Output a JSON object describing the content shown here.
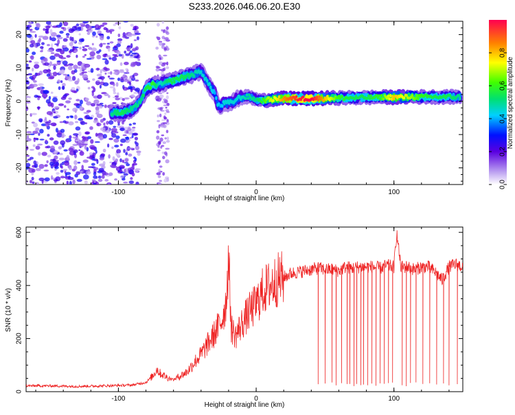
{
  "title": "S233.2026.046.06.20.E30",
  "chart_data": [
    {
      "type": "heatmap",
      "xlabel": "Height of straight line (km)",
      "ylabel": "Frequency (Hz)",
      "xlim": [
        -167,
        150
      ],
      "ylim": [
        -25,
        24
      ],
      "xticks": [
        -100,
        0,
        100
      ],
      "yticks": [
        -20,
        -10,
        0,
        10,
        20
      ],
      "colorbar": {
        "label": "Normalized spectral amplitude",
        "range": [
          0,
          1
        ],
        "ticks": [
          "0.0",
          "0.2",
          "0.4",
          "0.6",
          "0.8"
        ]
      },
      "ridge": [
        {
          "x": -105,
          "y": -3.5,
          "amp": 0.5
        },
        {
          "x": -98,
          "y": -3.5,
          "amp": 0.55
        },
        {
          "x": -90,
          "y": -2.5,
          "amp": 0.5
        },
        {
          "x": -84,
          "y": 0,
          "amp": 0.5
        },
        {
          "x": -80,
          "y": 3.5,
          "amp": 0.55
        },
        {
          "x": -75,
          "y": 5,
          "amp": 0.6
        },
        {
          "x": -70,
          "y": 5,
          "amp": 0.45
        },
        {
          "x": -62,
          "y": 6,
          "amp": 0.55
        },
        {
          "x": -55,
          "y": 7,
          "amp": 0.55
        },
        {
          "x": -46,
          "y": 8,
          "amp": 0.5
        },
        {
          "x": -40,
          "y": 9,
          "amp": 0.45
        },
        {
          "x": -33,
          "y": 4,
          "amp": 0.45
        },
        {
          "x": -30,
          "y": 2.5,
          "amp": 0.4
        },
        {
          "x": -28,
          "y": -1,
          "amp": 0.45
        },
        {
          "x": -26,
          "y": -1.5,
          "amp": 0.4
        },
        {
          "x": -23,
          "y": -0.5,
          "amp": 0.45
        },
        {
          "x": -18,
          "y": -0.5,
          "amp": 0.45
        },
        {
          "x": -12,
          "y": 1.2,
          "amp": 0.45
        },
        {
          "x": -5,
          "y": 1.3,
          "amp": 0.5
        },
        {
          "x": 0,
          "y": 0.5,
          "amp": 0.5
        },
        {
          "x": 5,
          "y": 0.2,
          "amp": 0.6
        },
        {
          "x": 10,
          "y": 0.5,
          "amp": 0.7
        },
        {
          "x": 15,
          "y": 0.7,
          "amp": 0.75
        },
        {
          "x": 20,
          "y": 0.8,
          "amp": 0.85
        },
        {
          "x": 30,
          "y": 0.8,
          "amp": 0.95
        },
        {
          "x": 40,
          "y": 0.8,
          "amp": 1.0
        },
        {
          "x": 50,
          "y": 0.9,
          "amp": 0.8
        },
        {
          "x": 60,
          "y": 1.0,
          "amp": 0.6
        },
        {
          "x": 70,
          "y": 1.0,
          "amp": 0.55
        },
        {
          "x": 80,
          "y": 1.1,
          "amp": 0.55
        },
        {
          "x": 90,
          "y": 1.2,
          "amp": 0.6
        },
        {
          "x": 100,
          "y": 1.2,
          "amp": 0.8
        },
        {
          "x": 110,
          "y": 1.3,
          "amp": 0.7
        },
        {
          "x": 120,
          "y": 1.3,
          "amp": 0.6
        },
        {
          "x": 130,
          "y": 1.3,
          "amp": 0.55
        },
        {
          "x": 140,
          "y": 1.3,
          "amp": 0.55
        },
        {
          "x": 148,
          "y": 1.3,
          "amp": 0.5
        }
      ],
      "noise_region": {
        "x_from": -167,
        "x_to": -85,
        "amp": 0.25
      }
    },
    {
      "type": "line",
      "xlabel": "Height of straight line (km)",
      "ylabel": "SNR (10 * v/v)",
      "xlim": [
        -167,
        150
      ],
      "ylim": [
        0,
        620
      ],
      "xticks": [
        -100,
        0,
        100
      ],
      "yticks": [
        0,
        200,
        400,
        600
      ],
      "series": [
        {
          "name": "SNR",
          "color": "#ee2222",
          "x": [
            -167,
            -150,
            -130,
            -110,
            -90,
            -80,
            -75,
            -72,
            -70,
            -65,
            -60,
            -55,
            -50,
            -45,
            -40,
            -35,
            -30,
            -25,
            -22,
            -20,
            -18,
            -15,
            -10,
            -5,
            0,
            5,
            10,
            15,
            20,
            25,
            30,
            35,
            40,
            45,
            50,
            55,
            60,
            65,
            70,
            75,
            80,
            85,
            90,
            95,
            100,
            102,
            105,
            110,
            115,
            120,
            125,
            130,
            135,
            140,
            145,
            150
          ],
          "y": [
            22,
            22,
            20,
            22,
            25,
            35,
            60,
            85,
            70,
            55,
            45,
            60,
            75,
            110,
            140,
            180,
            220,
            270,
            330,
            500,
            240,
            210,
            260,
            300,
            330,
            380,
            400,
            420,
            430,
            445,
            450,
            455,
            460,
            465,
            460,
            460,
            455,
            470,
            465,
            470,
            470,
            470,
            465,
            475,
            470,
            600,
            470,
            470,
            460,
            470,
            470,
            450,
            420,
            470,
            480,
            470
          ]
        }
      ],
      "dropouts": [
        45,
        50,
        55,
        58,
        62,
        66,
        68,
        71,
        73,
        76,
        78,
        81,
        84,
        87,
        90,
        93,
        96,
        99,
        106,
        109,
        112,
        116,
        121,
        126,
        131,
        136,
        140,
        146
      ]
    }
  ]
}
